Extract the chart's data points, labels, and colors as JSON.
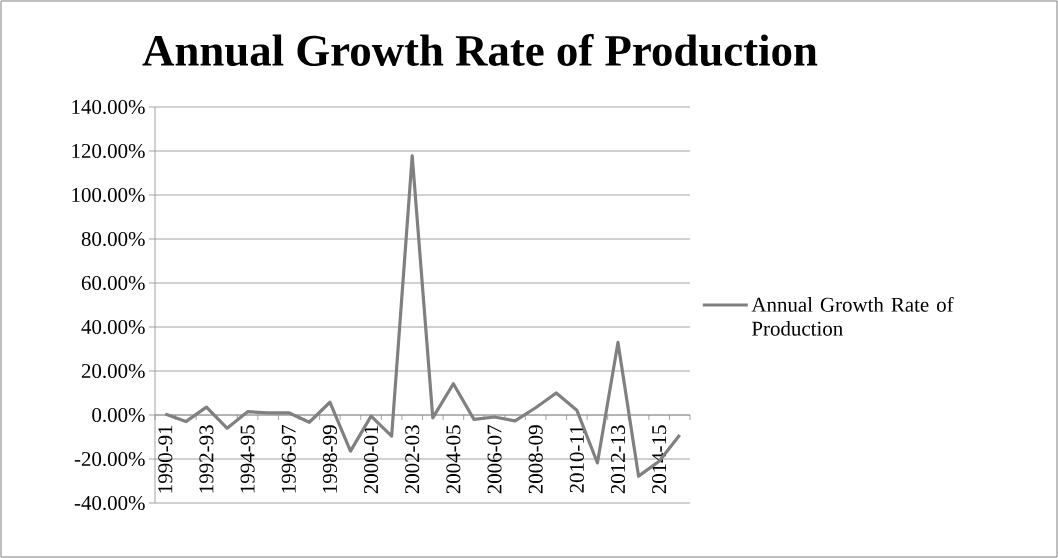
{
  "chart_data": {
    "type": "line",
    "title": "Annual Growth Rate of Production",
    "categories": [
      "1990-91",
      null,
      "1992-93",
      null,
      "1994-95",
      null,
      "1996-97",
      null,
      "1998-99",
      null,
      "2000-01",
      null,
      "2002-03",
      null,
      "2004-05",
      null,
      "2006-07",
      null,
      "2008-09",
      null,
      "2010-11",
      null,
      "2012-13",
      null,
      "2014-15",
      null
    ],
    "series": [
      {
        "name": "Annual Growth Rate of Production",
        "color": "#808080",
        "values": [
          0.4,
          -3,
          3.6,
          -6,
          1.5,
          1,
          1,
          -3.3,
          5.8,
          -16.4,
          -0.5,
          -9.6,
          117.8,
          -1.3,
          14.2,
          -2,
          -0.9,
          -2.7,
          3.3,
          10,
          2.2,
          -21.8,
          33,
          -27.8,
          -21,
          -9.1
        ]
      }
    ],
    "ylim": [
      -40,
      140
    ],
    "yticks": [
      {
        "value": -40,
        "label": "-40.00%"
      },
      {
        "value": -20,
        "label": "-20.00%"
      },
      {
        "value": 0,
        "label": "0.00%"
      },
      {
        "value": 20,
        "label": "20.00%"
      },
      {
        "value": 40,
        "label": "40.00%"
      },
      {
        "value": 60,
        "label": "60.00%"
      },
      {
        "value": 80,
        "label": "80.00%"
      },
      {
        "value": 100,
        "label": "100.00%"
      },
      {
        "value": 120,
        "label": "120.00%"
      },
      {
        "value": 140,
        "label": "140.00%"
      }
    ],
    "grid": "y",
    "legend": "right",
    "marker": "none",
    "line_style": "solid"
  }
}
